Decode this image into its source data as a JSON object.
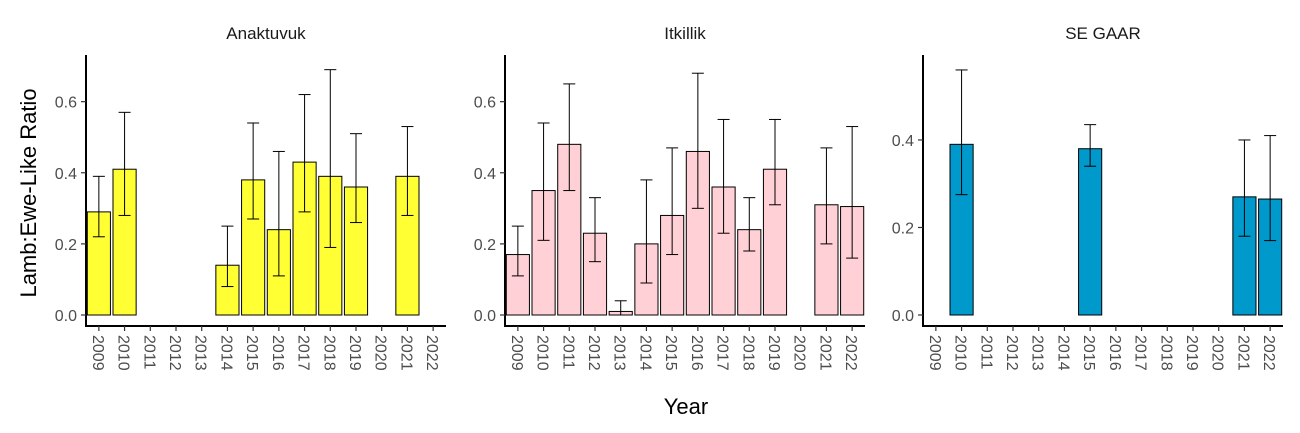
{
  "chart_data": {
    "type": "bar",
    "xlabel": "Year",
    "ylabel": "Lamb:Ewe-Like Ratio",
    "categories": [
      "2009",
      "2010",
      "2011",
      "2012",
      "2013",
      "2014",
      "2015",
      "2016",
      "2017",
      "2018",
      "2019",
      "2020",
      "2021",
      "2022"
    ],
    "panels": [
      {
        "title": "Anaktuvuk",
        "color": "#ffff33",
        "ylim": [
          0,
          0.72
        ],
        "yticks": [
          0.0,
          0.2,
          0.4,
          0.6
        ],
        "ytick_labels": [
          "0.0",
          "0.2",
          "0.4",
          "0.6"
        ],
        "values": [
          0.29,
          0.41,
          null,
          null,
          null,
          0.14,
          0.38,
          0.24,
          0.43,
          0.39,
          0.36,
          null,
          0.39,
          null
        ],
        "lower": [
          0.22,
          0.28,
          null,
          null,
          null,
          0.08,
          0.27,
          0.11,
          0.29,
          0.19,
          0.26,
          null,
          0.28,
          null
        ],
        "upper": [
          0.39,
          0.57,
          null,
          null,
          null,
          0.25,
          0.54,
          0.46,
          0.62,
          0.69,
          0.51,
          null,
          0.53,
          null
        ]
      },
      {
        "title": "Itkillik",
        "color": "#ffd1d6",
        "ylim": [
          0,
          0.72
        ],
        "yticks": [
          0.0,
          0.2,
          0.4,
          0.6
        ],
        "ytick_labels": [
          "0.0",
          "0.2",
          "0.4",
          "0.6"
        ],
        "values": [
          0.17,
          0.35,
          0.48,
          0.23,
          0.01,
          0.2,
          0.28,
          0.46,
          0.36,
          0.24,
          0.41,
          null,
          0.31,
          0.305
        ],
        "lower": [
          0.11,
          0.21,
          0.35,
          0.15,
          0.0,
          0.09,
          0.17,
          0.3,
          0.23,
          0.18,
          0.31,
          null,
          0.2,
          0.16
        ],
        "upper": [
          0.25,
          0.54,
          0.65,
          0.33,
          0.04,
          0.38,
          0.47,
          0.68,
          0.55,
          0.33,
          0.55,
          null,
          0.47,
          0.53
        ]
      },
      {
        "title": "SE GAAR",
        "color": "#0099cc",
        "ylim": [
          0,
          0.585
        ],
        "yticks": [
          0.0,
          0.2,
          0.4
        ],
        "ytick_labels": [
          "0.0",
          "0.2",
          "0.4"
        ],
        "values": [
          null,
          0.39,
          null,
          null,
          null,
          null,
          0.38,
          null,
          null,
          null,
          null,
          null,
          0.27,
          0.265
        ],
        "lower": [
          null,
          0.275,
          null,
          null,
          null,
          null,
          0.34,
          null,
          null,
          null,
          null,
          null,
          0.18,
          0.17
        ],
        "upper": [
          null,
          0.56,
          null,
          null,
          null,
          null,
          0.435,
          null,
          null,
          null,
          null,
          null,
          0.4,
          0.41
        ]
      }
    ]
  }
}
